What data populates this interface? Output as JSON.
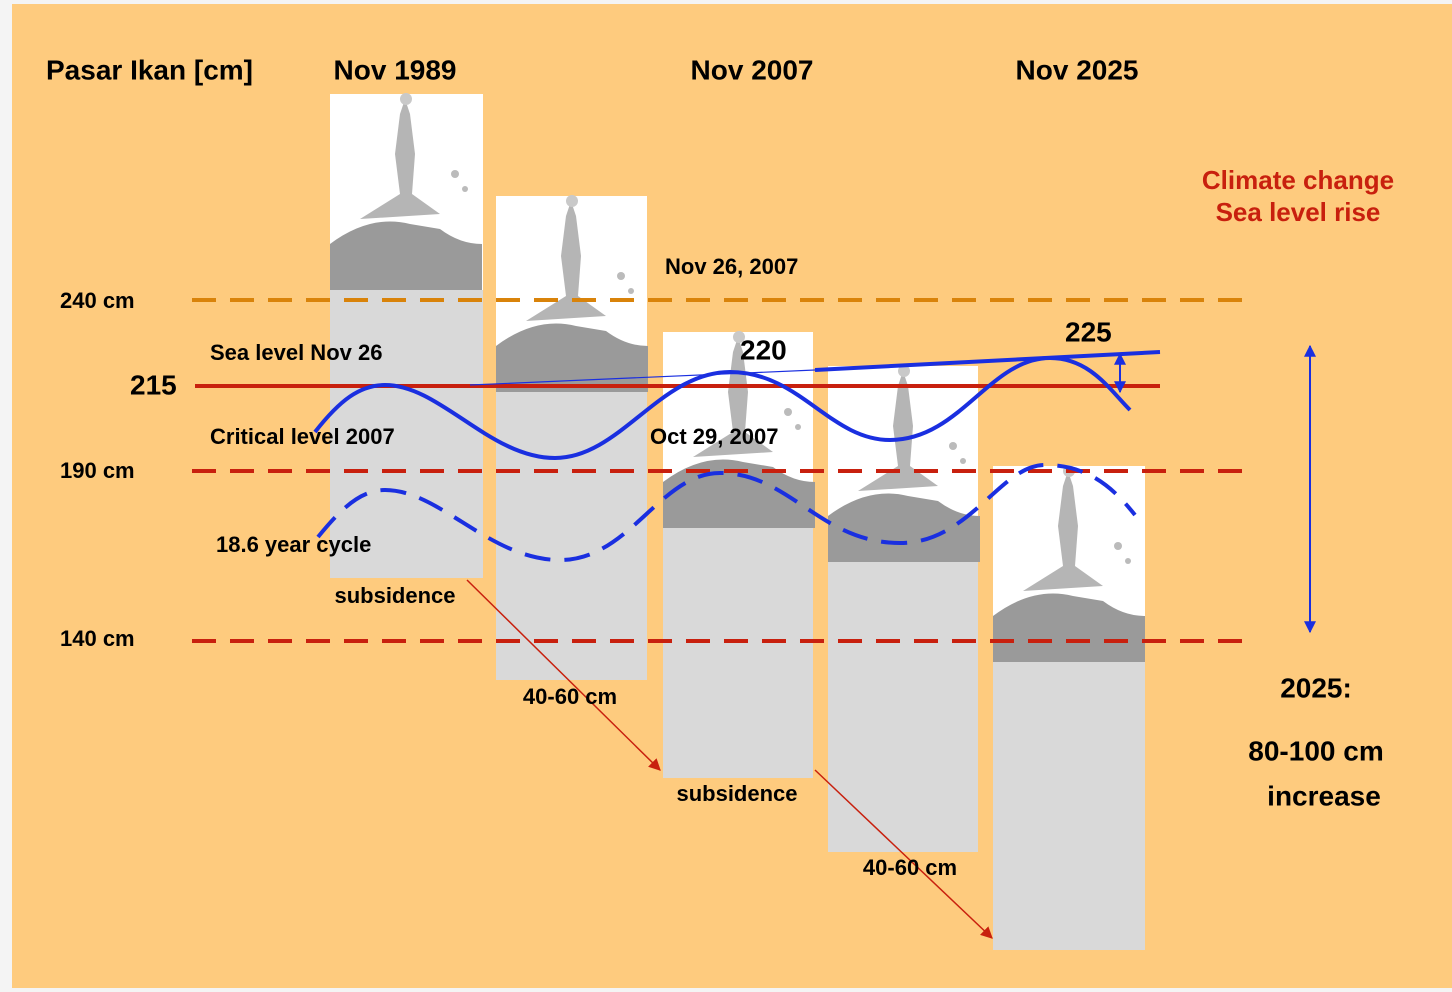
{
  "header": {
    "title": "Pasar Ikan [cm]",
    "periods": [
      "Nov 1989",
      "Nov 2007",
      "Nov 2025"
    ]
  },
  "climate": {
    "line1": "Climate change",
    "line2": "Sea level rise"
  },
  "levels": {
    "l240": "240 cm",
    "l215": "215",
    "l190": "190 cm",
    "l140": "140 cm"
  },
  "annotations": {
    "nov26": "Nov 26, 2007",
    "sea_level": "Sea level Nov 26",
    "peak2007": "220",
    "peak2025": "225",
    "critical": "Critical level 2007",
    "oct29": "Oct 29, 2007",
    "cycle": "18.6 year cycle",
    "subsidence1": "subsidence",
    "drop1": "40-60 cm",
    "subsidence2": "subsidence",
    "drop2": "40-60 cm"
  },
  "summary": {
    "year": "2025:",
    "amount": "80-100 cm",
    "word": "increase"
  }
}
